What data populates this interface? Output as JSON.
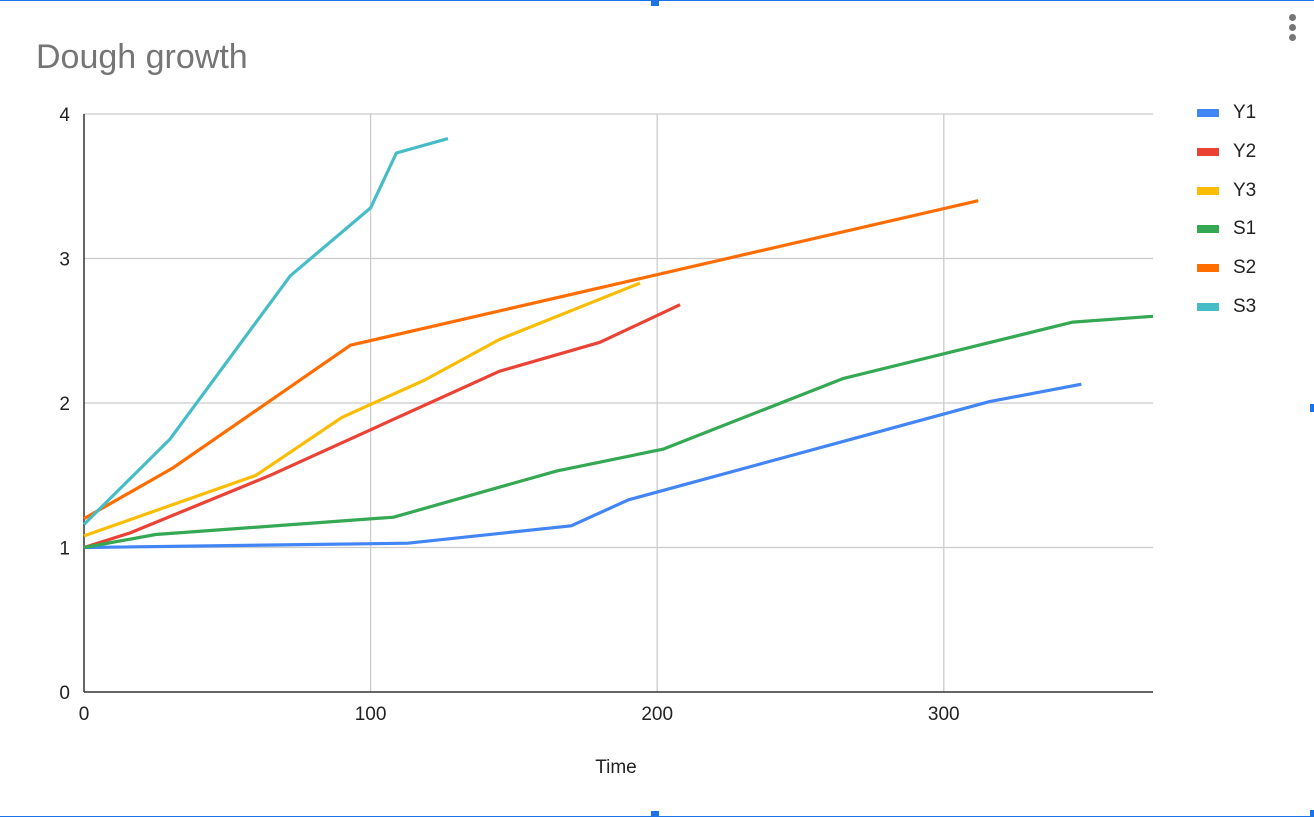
{
  "colors": {
    "series": [
      "#4285f4",
      "#ea4335",
      "#fbbc04",
      "#34a853",
      "#ff6d01",
      "#46bdc6"
    ],
    "grid": "#cccccc",
    "axis": "#333333",
    "title": "#757575",
    "selection": "#1a73e8"
  },
  "icons": {
    "menu": "more-vert-icon"
  },
  "chart_data": {
    "type": "line",
    "title": "Dough growth",
    "xlabel": "Time",
    "ylabel": "",
    "xlim": [
      0,
      373
    ],
    "ylim": [
      0,
      4
    ],
    "x_ticks": [
      "0",
      "100",
      "200",
      "300"
    ],
    "y_ticks": [
      "0",
      "1",
      "2",
      "3",
      "4"
    ],
    "grid": true,
    "legend_position": "right",
    "series": [
      {
        "name": "Y1",
        "points": [
          [
            0,
            1.0
          ],
          [
            113,
            1.03
          ],
          [
            170,
            1.15
          ],
          [
            190,
            1.33
          ],
          [
            316,
            2.01
          ],
          [
            348,
            2.13
          ]
        ]
      },
      {
        "name": "Y2",
        "points": [
          [
            0,
            1.0
          ],
          [
            16,
            1.1
          ],
          [
            65,
            1.5
          ],
          [
            145,
            2.22
          ],
          [
            180,
            2.42
          ],
          [
            208,
            2.68
          ]
        ]
      },
      {
        "name": "Y3",
        "points": [
          [
            0,
            1.08
          ],
          [
            60,
            1.5
          ],
          [
            90,
            1.9
          ],
          [
            119,
            2.16
          ],
          [
            145,
            2.44
          ],
          [
            194,
            2.83
          ]
        ]
      },
      {
        "name": "S1",
        "points": [
          [
            0,
            1.0
          ],
          [
            25,
            1.09
          ],
          [
            108,
            1.21
          ],
          [
            165,
            1.53
          ],
          [
            202,
            1.68
          ],
          [
            265,
            2.17
          ],
          [
            345,
            2.56
          ],
          [
            373,
            2.6
          ]
        ]
      },
      {
        "name": "S2",
        "points": [
          [
            0,
            1.2
          ],
          [
            31,
            1.55
          ],
          [
            93,
            2.4
          ],
          [
            312,
            3.4
          ]
        ]
      },
      {
        "name": "S3",
        "points": [
          [
            0,
            1.16
          ],
          [
            30,
            1.75
          ],
          [
            72,
            2.88
          ],
          [
            100,
            3.35
          ],
          [
            109,
            3.73
          ],
          [
            127,
            3.83
          ]
        ]
      }
    ]
  }
}
